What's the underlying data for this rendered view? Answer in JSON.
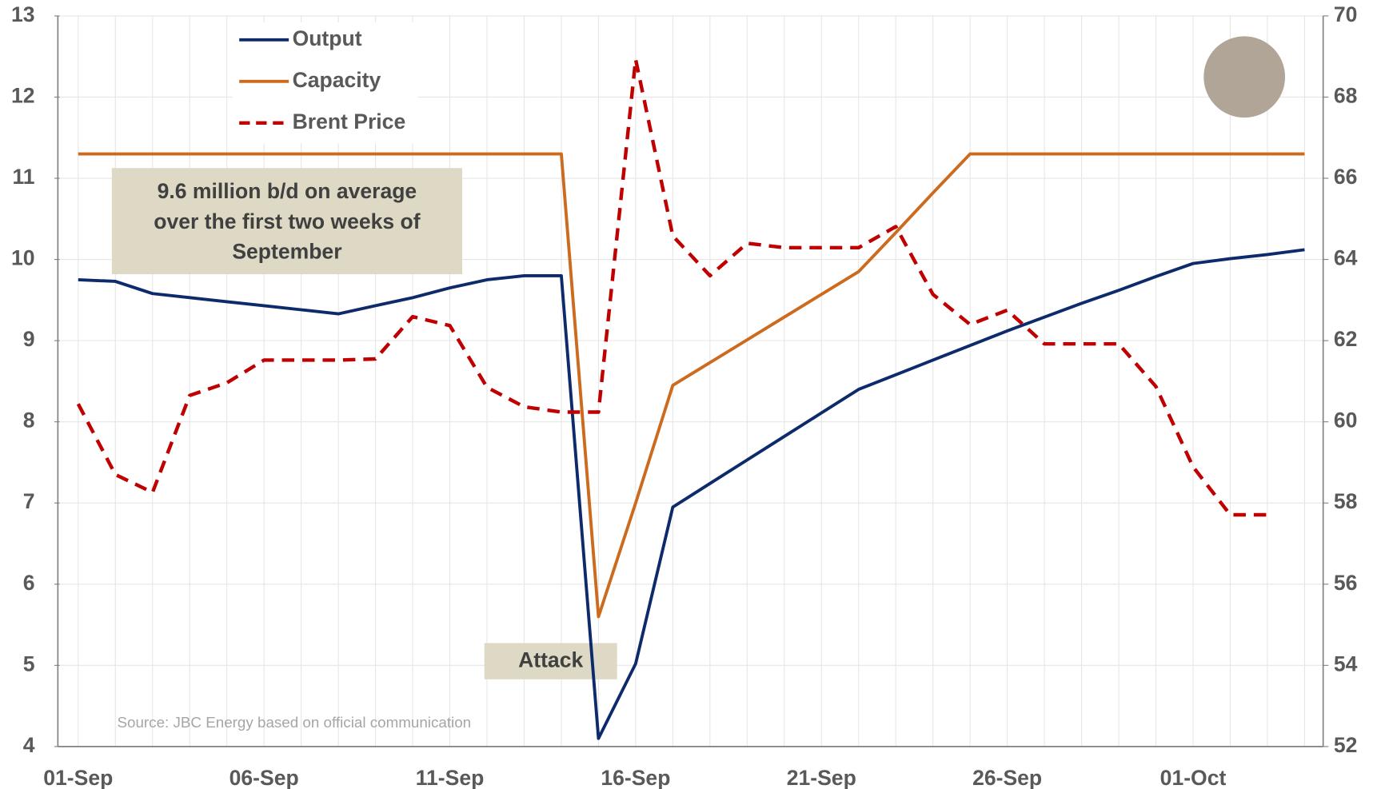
{
  "chart_data": {
    "type": "line",
    "categories": [
      "01-Sep",
      null,
      null,
      null,
      null,
      "06-Sep",
      null,
      null,
      null,
      null,
      "11-Sep",
      null,
      null,
      null,
      null,
      "16-Sep",
      null,
      null,
      null,
      null,
      "21-Sep",
      null,
      null,
      null,
      null,
      "26-Sep",
      null,
      null,
      null,
      null,
      "01-Oct",
      null,
      null,
      null
    ],
    "series": [
      {
        "name": "Output",
        "color": "#0d2a6b",
        "values": [
          9.75,
          9.73,
          9.58,
          9.53,
          9.48,
          9.43,
          9.38,
          9.33,
          9.43,
          9.53,
          9.65,
          9.75,
          9.8,
          9.8,
          4.1,
          5.02,
          6.95,
          7.24,
          7.53,
          7.82,
          8.11,
          8.4,
          8.58,
          8.76,
          8.94,
          9.12,
          9.29,
          9.46,
          9.62,
          9.79,
          9.95,
          10.01,
          10.06,
          10.12
        ]
      },
      {
        "name": "Capacity",
        "color": "#cc6a1e",
        "values": [
          11.3,
          11.3,
          11.3,
          11.3,
          11.3,
          11.3,
          11.3,
          11.3,
          11.3,
          11.3,
          11.3,
          11.3,
          11.3,
          11.3,
          5.6,
          7.0,
          8.45,
          8.73,
          9.01,
          9.29,
          9.57,
          9.85,
          10.33,
          10.82,
          11.3,
          11.3,
          11.3,
          11.3,
          11.3,
          11.3,
          11.3,
          11.3,
          11.3,
          11.3
        ]
      },
      {
        "name": "Brent Price",
        "color": "#c00000",
        "dashed": true,
        "axis": "y2",
        "values": [
          60.44,
          58.7,
          58.26,
          60.65,
          60.96,
          61.52,
          61.52,
          61.52,
          61.55,
          62.59,
          62.37,
          60.85,
          60.37,
          60.24,
          60.24,
          68.93,
          64.58,
          63.6,
          64.4,
          64.29,
          64.29,
          64.29,
          64.81,
          63.14,
          62.4,
          62.75,
          61.92,
          61.92,
          61.92,
          60.87,
          58.89,
          57.71,
          57.71,
          null
        ]
      }
    ],
    "ylim": [
      4,
      13
    ],
    "yticks": [
      4,
      5,
      6,
      7,
      8,
      9,
      10,
      11,
      12,
      13
    ],
    "y2lim": [
      52,
      70
    ],
    "y2ticks": [
      52,
      54,
      56,
      58,
      60,
      62,
      64,
      66,
      68,
      70
    ],
    "grid": true,
    "legend": "top-left",
    "annotations": [
      {
        "text": [
          "9.6 million b/d on average",
          "over the first two weeks of",
          "September"
        ]
      },
      {
        "text": [
          "Attack"
        ]
      }
    ],
    "source": "Source: JBC Energy based on official communication"
  }
}
